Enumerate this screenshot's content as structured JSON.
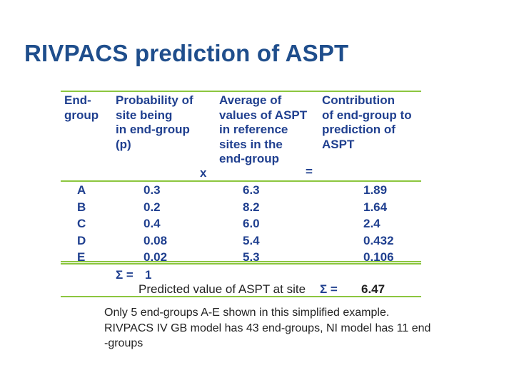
{
  "title": "RIVPACS prediction of ASPT",
  "table": {
    "headers": [
      "End-\ngroup",
      "Probability of\nsite being\nin end-group\n(p)",
      "Average of\nvalues of ASPT\nin reference\nsites in the\nend-group",
      "Contribution\nof end-group to\nprediction of\nASPT"
    ],
    "times_symbol": "x",
    "equals_symbol": "=",
    "rows": [
      {
        "group": "A",
        "p": "0.3",
        "avg": "6.3",
        "contribution": "1.89"
      },
      {
        "group": "B",
        "p": "0.2",
        "avg": "8.2",
        "contribution": "1.64"
      },
      {
        "group": "C",
        "p": "0.4",
        "avg": "6.0",
        "contribution": "2.4"
      },
      {
        "group": "D",
        "p": "0.08",
        "avg": "5.4",
        "contribution": "0.432"
      },
      {
        "group": "E",
        "p": "0.02",
        "avg": "5.3",
        "contribution": "0.106"
      }
    ],
    "sum_label": "Σ =",
    "sum_value": "1",
    "predicted_label": "Predicted value of ASPT at site",
    "predicted_sum_label": "Σ =",
    "predicted_value": "6.47"
  },
  "note_lines": [
    "Only 5 end-groups A-E shown in this simplified example.",
    "RIVPACS IV GB model has 43 end-groups, NI model has 11 end",
    "-groups"
  ],
  "colors": {
    "title": "#1f4e8c",
    "table_text": "#1f3f8f",
    "rule": "#8cc63f"
  }
}
